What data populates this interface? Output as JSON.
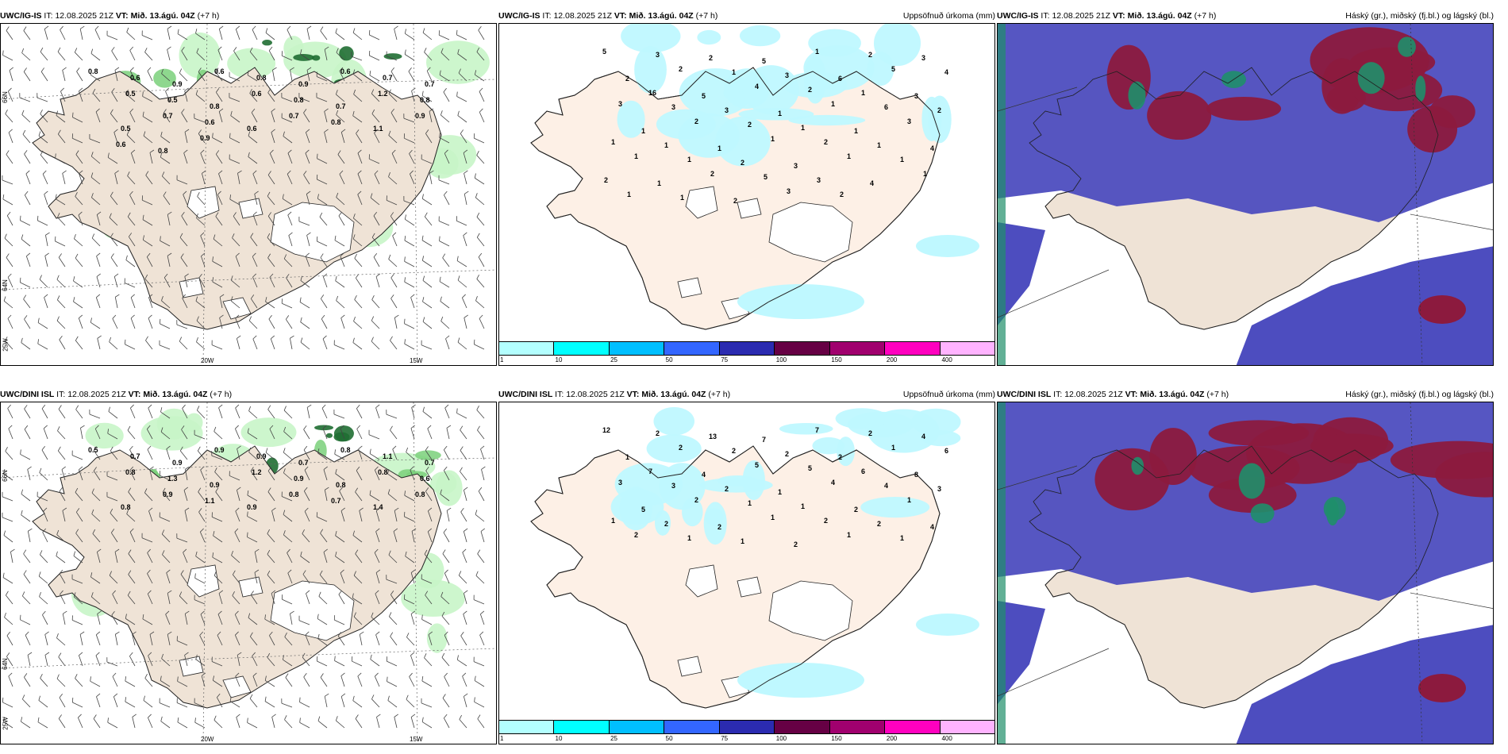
{
  "rows": [
    {
      "wind": {
        "model": "UWC/IG-IS",
        "it_label": "IT:",
        "it_value": "12.08.2025 21Z",
        "vt_label": "VT:",
        "vt_value": "Mið. 13.ágú. 04Z",
        "lead": "(+7 h)",
        "values": [
          "0.8",
          "0.6",
          "0.9",
          "0.6",
          "0.8",
          "0.9",
          "0.6",
          "0.7",
          "0.7",
          "0.5",
          "0.5",
          "0.8",
          "0.6",
          "0.8",
          "0.7",
          "1.2",
          "0.8",
          "0.5",
          "0.7",
          "0.6",
          "0.6",
          "0.7",
          "0.8",
          "1.1",
          "0.9",
          "0.6",
          "0.8",
          "0.9"
        ]
      },
      "precip": {
        "model": "UWC/IG-IS",
        "it_label": "IT:",
        "it_value": "12.08.2025 21Z",
        "vt_label": "VT:",
        "vt_value": "Mið. 13.ágú. 04Z",
        "lead": "(+7 h)",
        "right": "Uppsöfnuð úrkoma (mm)",
        "values": [
          "5",
          "3",
          "2",
          "5",
          "1",
          "2",
          "3",
          "2",
          "2",
          "1",
          "3",
          "6",
          "5",
          "4",
          "16",
          "5",
          "4",
          "2",
          "1",
          "3",
          "3",
          "3",
          "3",
          "1",
          "1",
          "6",
          "2",
          "1",
          "2",
          "2",
          "1",
          "1",
          "3",
          "1",
          "1",
          "1",
          "1",
          "2",
          "1",
          "4",
          "1",
          "1",
          "2",
          "3",
          "1",
          "1",
          "2",
          "1",
          "2",
          "5",
          "3",
          "4",
          "1",
          "1",
          "1",
          "2",
          "3",
          "2"
        ]
      },
      "cloud": {
        "model": "UWC/IG-IS",
        "it_label": "IT:",
        "it_value": "12.08.2025 21Z",
        "vt_label": "VT:",
        "vt_value": "Mið. 13.ágú. 04Z",
        "lead": "(+7 h)",
        "right": "Háský (gr.), miðský (fj.bl.) og lágský (bl.)"
      }
    },
    {
      "wind": {
        "model": "UWC/DINI ISL",
        "it_label": "IT:",
        "it_value": "12.08.2025 21Z",
        "vt_label": "VT:",
        "vt_value": "Mið. 13.ágú. 04Z",
        "lead": "(+7 h)",
        "values": [
          "0.5",
          "0.7",
          "0.9",
          "0.9",
          "0.9",
          "0.7",
          "0.8",
          "1.1",
          "0.7",
          "0.8",
          "1.3",
          "0.9",
          "1.2",
          "0.9",
          "0.8",
          "0.8",
          "0.6",
          "0.8",
          "0.9",
          "1.1",
          "0.9",
          "0.8",
          "0.7",
          "1.4",
          "0.8"
        ]
      },
      "precip": {
        "model": "UWC/DINI ISL",
        "it_label": "IT:",
        "it_value": "12.08.2025 21Z",
        "vt_label": "VT:",
        "vt_value": "Mið. 13.ágú. 04Z",
        "lead": "(+7 h)",
        "right": "Uppsöfnuð úrkoma (mm)",
        "values": [
          "12",
          "2",
          "13",
          "7",
          "7",
          "2",
          "4",
          "1",
          "2",
          "2",
          "2",
          "2",
          "1",
          "6",
          "7",
          "4",
          "5",
          "5",
          "6",
          "8",
          "3",
          "3",
          "2",
          "1",
          "4",
          "4",
          "3",
          "5",
          "2",
          "1",
          "1",
          "2",
          "1",
          "1",
          "2",
          "2",
          "1",
          "2",
          "2",
          "4",
          "2",
          "1",
          "1",
          "2",
          "1",
          "1"
        ]
      },
      "cloud": {
        "model": "UWC/DINI ISL",
        "it_label": "IT:",
        "it_value": "12.08.2025 21Z",
        "vt_label": "VT:",
        "vt_value": "Mið. 13.ágú. 04Z",
        "lead": "(+7 h)",
        "right": "Háský (gr.), miðský (fj.bl.) og lágský (bl.)"
      }
    }
  ],
  "axes": {
    "lon_20w": "20W",
    "lon_15w": "15W",
    "lat_66n": "66N",
    "lat_64n": "64N",
    "lat_25w": "25W"
  },
  "legend": {
    "ticks": [
      "1",
      "10",
      "25",
      "50",
      "75",
      "100",
      "150",
      "200",
      "400"
    ],
    "colors": [
      "#b3ffff",
      "#00ffff",
      "#00bfff",
      "#3366ff",
      "#2b2bb0",
      "#660044",
      "#a0006e",
      "#ff00bf",
      "#ffb3ff"
    ]
  },
  "colors": {
    "land": "#efe3d6",
    "land_precip": "#fdf0e6",
    "precip": "#bff8ff",
    "wind_light": "#c8f5c8",
    "wind_mid": "#7ad07a",
    "wind_dark": "#1f6e32",
    "cloud_high": "#8c1a3e",
    "cloud_mid": "#4d4dbf",
    "cloud_low": "#1f8f6a"
  }
}
